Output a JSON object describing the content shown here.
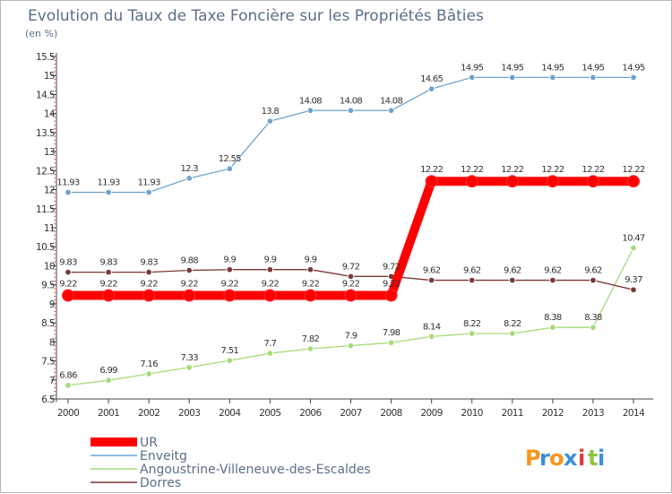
{
  "chart_data": {
    "type": "line",
    "title": "Evolution du Taux de Taxe Foncière sur les Propriétés Bâties",
    "subtitle": "(en %)",
    "x": [
      "2000",
      "2001",
      "2002",
      "2003",
      "2004",
      "2005",
      "2006",
      "2007",
      "2008",
      "2009",
      "2010",
      "2011",
      "2012",
      "2013",
      "2014"
    ],
    "ylim": [
      6.5,
      15.5
    ],
    "yticks": [
      "6.5",
      "7",
      "7.5",
      "8",
      "8.5",
      "9",
      "9.5",
      "10",
      "10.5",
      "11",
      "11.5",
      "12",
      "12.5",
      "13",
      "13.5",
      "14",
      "14.5",
      "15",
      "15.5"
    ],
    "grid": false,
    "legend_placement": "bottom-left",
    "series": [
      {
        "name": "UR",
        "color": "#ff0000",
        "values": [
          9.22,
          9.22,
          9.22,
          9.22,
          9.22,
          9.22,
          9.22,
          9.22,
          9.22,
          12.22,
          12.22,
          12.22,
          12.22,
          12.22,
          12.22
        ],
        "labels": [
          "9.22",
          "9.22",
          "9.22",
          "9.22",
          "9.22",
          "9.22",
          "9.22",
          "9.22",
          "9.22",
          "12.22",
          "12.22",
          "12.22",
          "12.22",
          "12.22",
          "12.22"
        ]
      },
      {
        "name": "Enveitg",
        "color": "#6fa2cf",
        "values": [
          11.93,
          11.93,
          11.93,
          12.3,
          12.55,
          13.8,
          14.08,
          14.08,
          14.08,
          14.65,
          14.95,
          14.95,
          14.95,
          14.95,
          14.95
        ],
        "labels": [
          "11.93",
          "11.93",
          "11.93",
          "12.3",
          "12.55",
          "13.8",
          "14.08",
          "14.08",
          "14.08",
          "14.65",
          "14.95",
          "14.95",
          "14.95",
          "14.95",
          "14.95"
        ]
      },
      {
        "name": "Angoustrine-Villeneuve-des-Escaldes",
        "color": "#a6db7a",
        "values": [
          6.86,
          6.99,
          7.16,
          7.33,
          7.51,
          7.7,
          7.82,
          7.9,
          7.98,
          8.14,
          8.22,
          8.22,
          8.38,
          8.38,
          10.47
        ],
        "labels": [
          "6.86",
          "6.99",
          "7.16",
          "7.33",
          "7.51",
          "7.7",
          "7.82",
          "7.9",
          "7.98",
          "8.14",
          "8.22",
          "8.22",
          "8.38",
          "8.38",
          "10.47"
        ]
      },
      {
        "name": "Dorres",
        "color": "#7a3838",
        "values": [
          9.83,
          9.83,
          9.83,
          9.88,
          9.9,
          9.9,
          9.9,
          9.72,
          9.72,
          9.62,
          9.62,
          9.62,
          9.62,
          9.62,
          9.37
        ],
        "labels": [
          "9.83",
          "9.83",
          "9.83",
          "9.88",
          "9.9",
          "9.9",
          "9.9",
          "9.72",
          "9.72",
          "9.62",
          "9.62",
          "9.62",
          "9.62",
          "9.62",
          "9.37"
        ]
      }
    ]
  },
  "logo": {
    "text": "Proxiti",
    "letters": [
      "P",
      "r",
      "o",
      "x",
      "i",
      "t",
      "i"
    ],
    "colors": [
      "#f7941d",
      "#3b8fd6",
      "#f7941d",
      "#3b8fd6",
      "#e23b3b",
      "#8cc63f",
      "#3b8fd6"
    ]
  }
}
